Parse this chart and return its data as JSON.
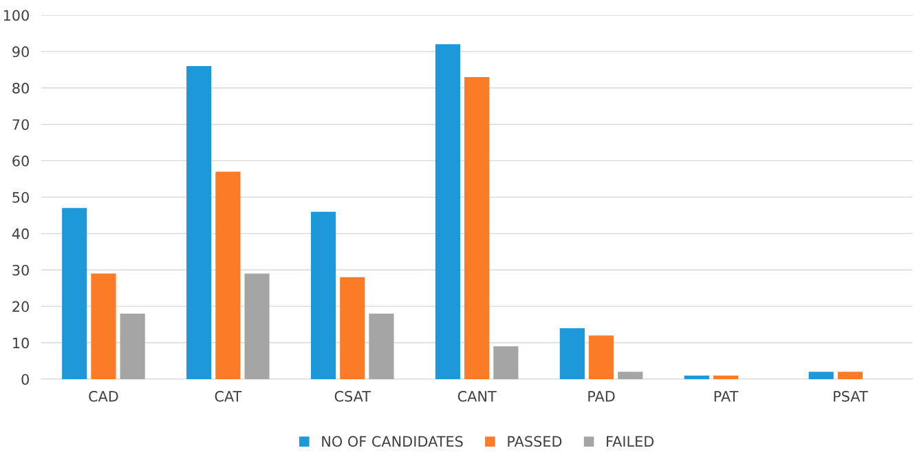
{
  "chart_data": {
    "type": "bar",
    "categories": [
      "CAD",
      "CAT",
      "CSAT",
      "CANT",
      "PAD",
      "PAT",
      "PSAT"
    ],
    "series": [
      {
        "name": "NO OF CANDIDATES",
        "color": "#1d98d8",
        "values": [
          47,
          86,
          46,
          92,
          14,
          1,
          2
        ]
      },
      {
        "name": "PASSED",
        "color": "#fb7b26",
        "values": [
          29,
          57,
          28,
          83,
          12,
          1,
          2
        ]
      },
      {
        "name": "FAILED",
        "color": "#a5a5a5",
        "values": [
          18,
          29,
          18,
          9,
          2,
          0,
          0
        ]
      }
    ],
    "ylim": [
      0,
      100
    ],
    "yticks": [
      0,
      10,
      20,
      30,
      40,
      50,
      60,
      70,
      80,
      90,
      100
    ],
    "grid": "y",
    "legend": "bottom"
  }
}
